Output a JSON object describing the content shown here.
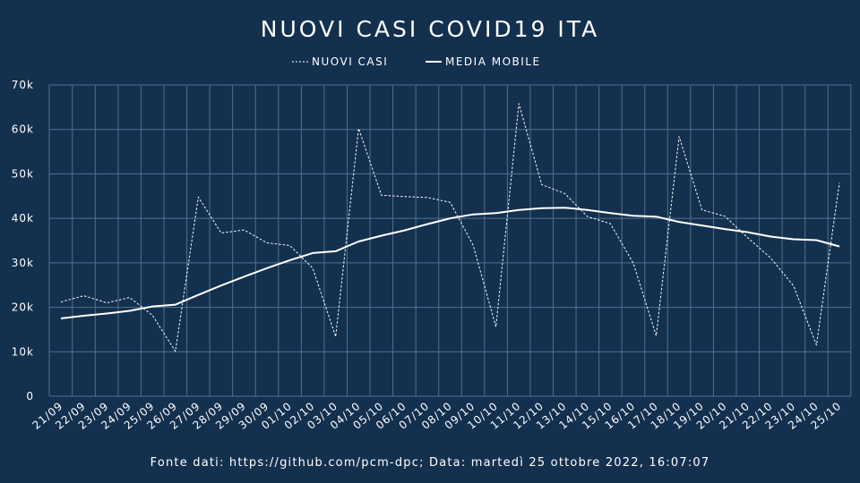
{
  "colors": {
    "background": "#14304f",
    "grid": "#50708f",
    "line": "#ffffff"
  },
  "chart_data": {
    "type": "line",
    "title": "NUOVI CASI COVID19 ITA",
    "legend": {
      "placement": "top-center"
    },
    "grid": true,
    "xlabel": "",
    "ylabel": "",
    "x": [
      "21/09",
      "22/09",
      "23/09",
      "24/09",
      "25/09",
      "26/09",
      "27/09",
      "28/09",
      "29/09",
      "30/09",
      "01/10",
      "02/10",
      "03/10",
      "04/10",
      "05/10",
      "06/10",
      "07/10",
      "08/10",
      "09/10",
      "10/10",
      "11/10",
      "12/10",
      "13/10",
      "14/10",
      "15/10",
      "16/10",
      "17/10",
      "18/10",
      "19/10",
      "20/10",
      "21/10",
      "22/10",
      "23/10",
      "24/10",
      "25/10"
    ],
    "ylim": [
      0,
      70000
    ],
    "yticks": [
      0,
      10000,
      20000,
      30000,
      40000,
      50000,
      60000,
      70000
    ],
    "ytick_labels": [
      "0",
      "10k",
      "20k",
      "30k",
      "40k",
      "50k",
      "60k",
      "70k"
    ],
    "series": [
      {
        "name": "NUOVI CASI",
        "style": "dashed",
        "values": [
          21200,
          22600,
          21000,
          22200,
          18200,
          10100,
          44800,
          36700,
          37400,
          34500,
          33900,
          28800,
          13400,
          60200,
          45200,
          44900,
          44700,
          43600,
          34000,
          15600,
          65800,
          47600,
          45600,
          40400,
          38800,
          29900,
          13600,
          58400,
          41900,
          40500,
          35600,
          31100,
          24800,
          11500,
          48000
        ]
      },
      {
        "name": "MEDIA MOBILE",
        "style": "solid",
        "values": [
          17500,
          18100,
          18600,
          19200,
          20200,
          20600,
          22800,
          24900,
          26900,
          28800,
          30600,
          32200,
          32600,
          34800,
          36100,
          37300,
          38700,
          40000,
          40900,
          41200,
          41900,
          42300,
          42400,
          41900,
          41200,
          40600,
          40400,
          39200,
          38400,
          37600,
          36900,
          35900,
          35300,
          35100,
          33700
        ]
      }
    ]
  },
  "footer": "Fonte dati: https://github.com/pcm-dpc; Data: martedì 25 ottobre 2022, 16:07:07"
}
